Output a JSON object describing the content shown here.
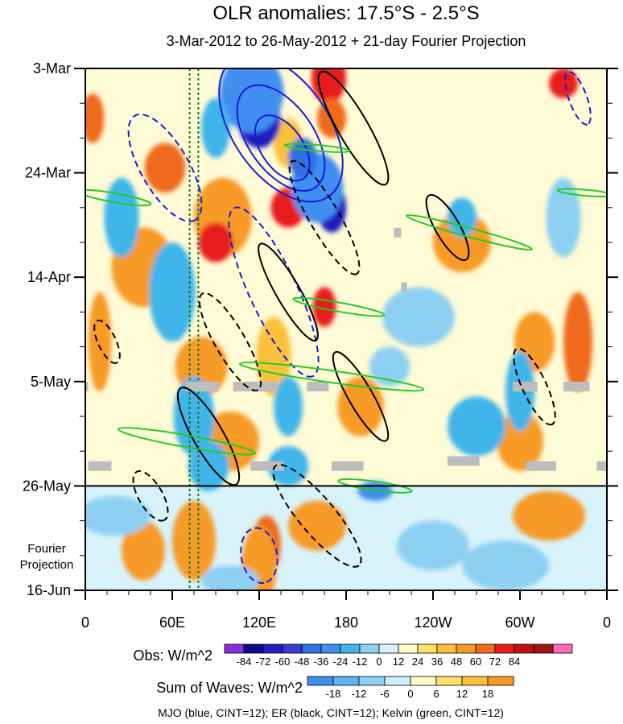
{
  "chart_data": {
    "type": "heatmap",
    "title": "OLR anomalies: 17.5°S - 2.5°S",
    "subtitle": "3-Mar-2012 to 26-May-2012 + 21-day Fourier Projection",
    "x_ticks": [
      "0",
      "60E",
      "120E",
      "180",
      "120W",
      "60W",
      "0"
    ],
    "x_tick_lon": [
      0,
      60,
      120,
      180,
      240,
      300,
      360
    ],
    "y_ticks": [
      "3-Mar",
      "24-Mar",
      "14-Apr",
      "5-May",
      "26-May",
      "16-Jun"
    ],
    "y_tick_day": [
      0,
      21,
      42,
      63,
      84,
      105
    ],
    "projection_start_day": 84,
    "projection_label": "Fourier\nProjection",
    "obs_colorbar": {
      "label": "Obs: W/m^2",
      "ticks": [
        "-84",
        "-72",
        "-60",
        "-48",
        "-36",
        "-24",
        "-12",
        "0",
        "12",
        "24",
        "36",
        "48",
        "60",
        "72",
        "84"
      ],
      "colors": [
        "#8a2be2",
        "#0a0a8c",
        "#1f1fbf",
        "#3a3ad6",
        "#2f6fe0",
        "#3f8ff0",
        "#3fb5ea",
        "#8ed0f2",
        "#d6f2fb",
        "#fffac8",
        "#fde06a",
        "#fbc13a",
        "#f79a25",
        "#ef6b1e",
        "#e81e1e",
        "#c40f0f",
        "#9b1616",
        "#ff69b4"
      ]
    },
    "waves_colorbar": {
      "label": "Sum of Waves: W/m^2",
      "ticks": [
        "-18",
        "-12",
        "-6",
        "0",
        "6",
        "12",
        "18"
      ],
      "colors": [
        "#3a8fe6",
        "#5cb4f0",
        "#8ed0f2",
        "#cdeefb",
        "#fffac8",
        "#fde06a",
        "#fbc13a",
        "#f79a25"
      ]
    },
    "footnote": "MJO (blue, CINT=12); ER (black, CINT=12); Kelvin (green, CINT=12)",
    "reference_lines_lon": [
      72,
      78
    ],
    "missing_segments": [
      {
        "lon1": 0,
        "lon2": 2,
        "day": 64
      },
      {
        "lon1": 69,
        "lon2": 92,
        "day": 64
      },
      {
        "lon1": 102,
        "lon2": 132,
        "day": 64
      },
      {
        "lon1": 153,
        "lon2": 168,
        "day": 64
      },
      {
        "lon1": 295,
        "lon2": 312,
        "day": 64
      },
      {
        "lon1": 330,
        "lon2": 348,
        "day": 64
      },
      {
        "lon1": 2,
        "lon2": 18,
        "day": 80
      },
      {
        "lon1": 114,
        "lon2": 137,
        "day": 80
      },
      {
        "lon1": 170,
        "lon2": 192,
        "day": 80
      },
      {
        "lon1": 250,
        "lon2": 272,
        "day": 79
      },
      {
        "lon1": 304,
        "lon2": 325,
        "day": 80
      },
      {
        "lon1": 353,
        "lon2": 360,
        "day": 80
      },
      {
        "lon1": 213,
        "lon2": 218,
        "day": 33
      },
      {
        "lon1": 218,
        "lon2": 222,
        "day": 44
      }
    ],
    "anomaly_blobs": [
      {
        "lon": 120,
        "day": 8,
        "rx": 18,
        "ry": 6,
        "cat": 1
      },
      {
        "lon": 108,
        "day": 4,
        "rx": 12,
        "ry": 4,
        "cat": 2
      },
      {
        "lon": 165,
        "day": 25,
        "rx": 12,
        "ry": 5,
        "cat": 1
      },
      {
        "lon": 140,
        "day": 15,
        "rx": 10,
        "ry": 5,
        "cat": 3
      },
      {
        "lon": 95,
        "day": 30,
        "rx": 20,
        "ry": 8,
        "cat": 4
      },
      {
        "lon": 40,
        "day": 40,
        "rx": 22,
        "ry": 8,
        "cat": 4
      },
      {
        "lon": 80,
        "day": 60,
        "rx": 18,
        "ry": 6,
        "cat": 4
      },
      {
        "lon": 130,
        "day": 58,
        "rx": 12,
        "ry": 8,
        "cat": 3
      },
      {
        "lon": 100,
        "day": 75,
        "rx": 20,
        "ry": 6,
        "cat": 4
      },
      {
        "lon": 190,
        "day": 68,
        "rx": 16,
        "ry": 6,
        "cat": 4
      },
      {
        "lon": 260,
        "day": 35,
        "rx": 20,
        "ry": 6,
        "cat": 4
      },
      {
        "lon": 310,
        "day": 55,
        "rx": 14,
        "ry": 6,
        "cat": 4
      },
      {
        "lon": 300,
        "day": 75,
        "rx": 16,
        "ry": 6,
        "cat": 4
      },
      {
        "lon": 10,
        "day": 55,
        "rx": 8,
        "ry": 10,
        "cat": 4
      },
      {
        "lon": 168,
        "day": 2,
        "rx": 12,
        "ry": 5,
        "cat": 6
      },
      {
        "lon": 170,
        "day": 10,
        "rx": 10,
        "ry": 4,
        "cat": 5
      },
      {
        "lon": 140,
        "day": 28,
        "rx": 12,
        "ry": 4,
        "cat": 6
      },
      {
        "lon": 90,
        "day": 35,
        "rx": 12,
        "ry": 4,
        "cat": 6
      },
      {
        "lon": 55,
        "day": 20,
        "rx": 14,
        "ry": 5,
        "cat": 5
      },
      {
        "lon": 165,
        "day": 48,
        "rx": 8,
        "ry": 4,
        "cat": 6
      },
      {
        "lon": 340,
        "day": 55,
        "rx": 10,
        "ry": 10,
        "cat": 5
      },
      {
        "lon": 330,
        "day": 3,
        "rx": 10,
        "ry": 3,
        "cat": 6
      },
      {
        "lon": 5,
        "day": 10,
        "rx": 8,
        "ry": 5,
        "cat": 5
      },
      {
        "lon": 125,
        "day": 96,
        "rx": 10,
        "ry": 6,
        "cat": 5
      },
      {
        "lon": 120,
        "day": 100,
        "rx": 12,
        "ry": 8,
        "cat": 4
      },
      {
        "lon": 75,
        "day": 95,
        "rx": 15,
        "ry": 8,
        "cat": 4
      },
      {
        "lon": 160,
        "day": 92,
        "rx": 20,
        "ry": 5,
        "cat": 4
      },
      {
        "lon": 40,
        "day": 97,
        "rx": 15,
        "ry": 6,
        "cat": 4
      },
      {
        "lon": 320,
        "day": 90,
        "rx": 25,
        "ry": 5,
        "cat": 4
      },
      {
        "lon": 240,
        "day": 96,
        "rx": 25,
        "ry": 5,
        "cat": -2
      },
      {
        "lon": 20,
        "day": 90,
        "rx": 25,
        "ry": 4,
        "cat": -2
      },
      {
        "lon": 290,
        "day": 100,
        "rx": 30,
        "ry": 5,
        "cat": -2
      },
      {
        "lon": 100,
        "day": 103,
        "rx": 20,
        "ry": 3,
        "cat": -2
      },
      {
        "lon": 120,
        "day": 10,
        "rx": 15,
        "ry": 6,
        "cat": -6
      },
      {
        "lon": 115,
        "day": 5,
        "rx": 22,
        "ry": 8,
        "cat": -4
      },
      {
        "lon": 170,
        "day": 28,
        "rx": 10,
        "ry": 5,
        "cat": -6
      },
      {
        "lon": 160,
        "day": 24,
        "rx": 18,
        "ry": 7,
        "cat": -4
      },
      {
        "lon": 150,
        "day": 18,
        "rx": 10,
        "ry": 4,
        "cat": -5
      },
      {
        "lon": 90,
        "day": 12,
        "rx": 10,
        "ry": 6,
        "cat": -3
      },
      {
        "lon": 75,
        "day": 70,
        "rx": 14,
        "ry": 8,
        "cat": -3
      },
      {
        "lon": 140,
        "day": 68,
        "rx": 10,
        "ry": 6,
        "cat": -3
      },
      {
        "lon": 85,
        "day": 80,
        "rx": 14,
        "ry": 5,
        "cat": -3
      },
      {
        "lon": 60,
        "day": 45,
        "rx": 16,
        "ry": 10,
        "cat": -3
      },
      {
        "lon": 25,
        "day": 30,
        "rx": 12,
        "ry": 8,
        "cat": -3
      },
      {
        "lon": 260,
        "day": 30,
        "rx": 10,
        "ry": 4,
        "cat": -3
      },
      {
        "lon": 270,
        "day": 72,
        "rx": 20,
        "ry": 6,
        "cat": -3
      },
      {
        "lon": 300,
        "day": 65,
        "rx": 10,
        "ry": 8,
        "cat": -3
      },
      {
        "lon": 210,
        "day": 60,
        "rx": 14,
        "ry": 4,
        "cat": -2
      },
      {
        "lon": 230,
        "day": 50,
        "rx": 25,
        "ry": 6,
        "cat": -2
      },
      {
        "lon": 330,
        "day": 30,
        "rx": 12,
        "ry": 8,
        "cat": -2
      },
      {
        "lon": 200,
        "day": 85,
        "rx": 12,
        "ry": 2,
        "cat": -4
      },
      {
        "lon": 140,
        "day": 80,
        "rx": 14,
        "ry": 4,
        "cat": -3
      }
    ],
    "contours": [
      {
        "wave": "MJO",
        "lon": 135,
        "day": 12,
        "rx": 36,
        "ry": 16,
        "rot": 55,
        "sign": "neg"
      },
      {
        "wave": "MJO",
        "lon": 135,
        "day": 14,
        "rx": 26,
        "ry": 11,
        "rot": 55,
        "sign": "neg"
      },
      {
        "wave": "MJO",
        "lon": 136,
        "day": 16,
        "rx": 16,
        "ry": 7,
        "rot": 55,
        "sign": "neg"
      },
      {
        "wave": "MJO",
        "lon": 55,
        "day": 20,
        "rx": 26,
        "ry": 8,
        "rot": 60,
        "sign": "pos"
      },
      {
        "wave": "MJO",
        "lon": 130,
        "day": 45,
        "rx": 40,
        "ry": 8,
        "rot": 65,
        "sign": "pos"
      },
      {
        "wave": "MJO",
        "lon": 120,
        "day": 98,
        "rx": 12,
        "ry": 6,
        "rot": 80,
        "sign": "pos"
      },
      {
        "wave": "MJO",
        "lon": 340,
        "day": 6,
        "rx": 12,
        "ry": 3,
        "rot": 70,
        "sign": "pos"
      },
      {
        "wave": "ER",
        "lon": 185,
        "day": 12,
        "rx": 28,
        "ry": 5,
        "rot": 60,
        "sign": "neg"
      },
      {
        "wave": "ER",
        "lon": 165,
        "day": 30,
        "rx": 28,
        "ry": 5,
        "rot": 60,
        "sign": "pos"
      },
      {
        "wave": "ER",
        "lon": 140,
        "day": 45,
        "rx": 24,
        "ry": 4,
        "rot": 60,
        "sign": "neg"
      },
      {
        "wave": "ER",
        "lon": 100,
        "day": 55,
        "rx": 24,
        "ry": 5,
        "rot": 60,
        "sign": "pos"
      },
      {
        "wave": "ER",
        "lon": 190,
        "day": 66,
        "rx": 22,
        "ry": 4,
        "rot": 60,
        "sign": "neg"
      },
      {
        "wave": "ER",
        "lon": 85,
        "day": 74,
        "rx": 24,
        "ry": 5,
        "rot": 60,
        "sign": "neg"
      },
      {
        "wave": "ER",
        "lon": 45,
        "day": 86,
        "rx": 12,
        "ry": 4,
        "rot": 60,
        "sign": "pos"
      },
      {
        "wave": "ER",
        "lon": 160,
        "day": 90,
        "rx": 28,
        "ry": 6,
        "rot": 50,
        "sign": "pos"
      },
      {
        "wave": "ER",
        "lon": 250,
        "day": 32,
        "rx": 16,
        "ry": 4,
        "rot": 60,
        "sign": "neg"
      },
      {
        "wave": "ER",
        "lon": 310,
        "day": 64,
        "rx": 18,
        "ry": 4,
        "rot": 65,
        "sign": "pos"
      },
      {
        "wave": "ER",
        "lon": 15,
        "day": 55,
        "rx": 10,
        "ry": 3,
        "rot": 65,
        "sign": "pos"
      },
      {
        "wave": "Kelvin",
        "lon": 160,
        "day": 16,
        "rx": 14,
        "ry": 1,
        "rot": 5,
        "sign": "neg"
      },
      {
        "wave": "Kelvin",
        "lon": 265,
        "day": 33,
        "rx": 28,
        "ry": 1.5,
        "rot": 15,
        "sign": "neg"
      },
      {
        "wave": "Kelvin",
        "lon": 20,
        "day": 26,
        "rx": 16,
        "ry": 1.5,
        "rot": 10,
        "sign": "neg"
      },
      {
        "wave": "Kelvin",
        "lon": 175,
        "day": 48,
        "rx": 20,
        "ry": 1.5,
        "rot": 10,
        "sign": "neg"
      },
      {
        "wave": "Kelvin",
        "lon": 170,
        "day": 62,
        "rx": 40,
        "ry": 2,
        "rot": 8,
        "sign": "neg"
      },
      {
        "wave": "Kelvin",
        "lon": 70,
        "day": 75,
        "rx": 30,
        "ry": 2,
        "rot": 10,
        "sign": "neg"
      },
      {
        "wave": "Kelvin",
        "lon": 200,
        "day": 84,
        "rx": 16,
        "ry": 1.5,
        "rot": 8,
        "sign": "neg"
      },
      {
        "wave": "Kelvin",
        "lon": 345,
        "day": 25,
        "rx": 12,
        "ry": 1,
        "rot": 5,
        "sign": "neg"
      }
    ]
  }
}
